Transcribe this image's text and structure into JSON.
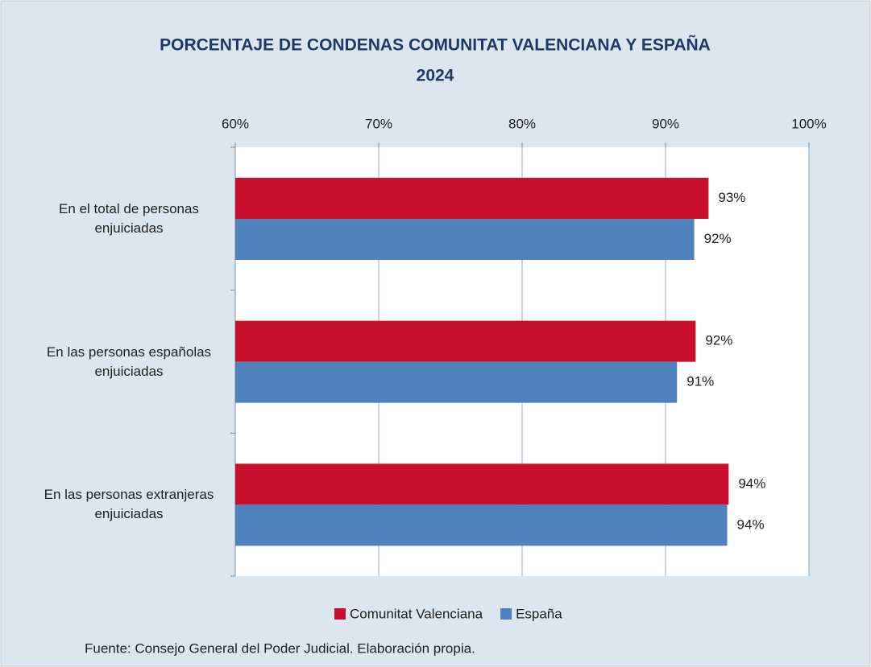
{
  "chart_data": {
    "type": "hbar",
    "title": "PORCENTAJE DE CONDENAS COMUNITAT VALENCIANA Y ESPAÑA",
    "subtitle": "2024",
    "categories": [
      "En el total de personas enjuiciadas",
      "En las personas españolas enjuiciadas",
      "En las personas extranjeras enjuiciadas"
    ],
    "series": [
      {
        "name": "Comunitat Valenciana",
        "color": "#c8102e",
        "values": [
          93.0,
          92.1,
          94.4
        ],
        "value_labels": [
          "93%",
          "92%",
          "94%"
        ]
      },
      {
        "name": "España",
        "color": "#4f81bd",
        "values": [
          92.0,
          90.8,
          94.3
        ],
        "value_labels": [
          "92%",
          "91%",
          "94%"
        ]
      }
    ],
    "xlim": [
      60,
      100
    ],
    "xticks": [
      {
        "value": 60,
        "label": "60%"
      },
      {
        "value": 70,
        "label": "70%"
      },
      {
        "value": 80,
        "label": "80%"
      },
      {
        "value": 90,
        "label": "90%"
      },
      {
        "value": 100,
        "label": "100%"
      }
    ],
    "grid": true,
    "legend": "bottom",
    "source": "Fuente: Consejo General del Poder Judicial. Elaboración propia."
  }
}
